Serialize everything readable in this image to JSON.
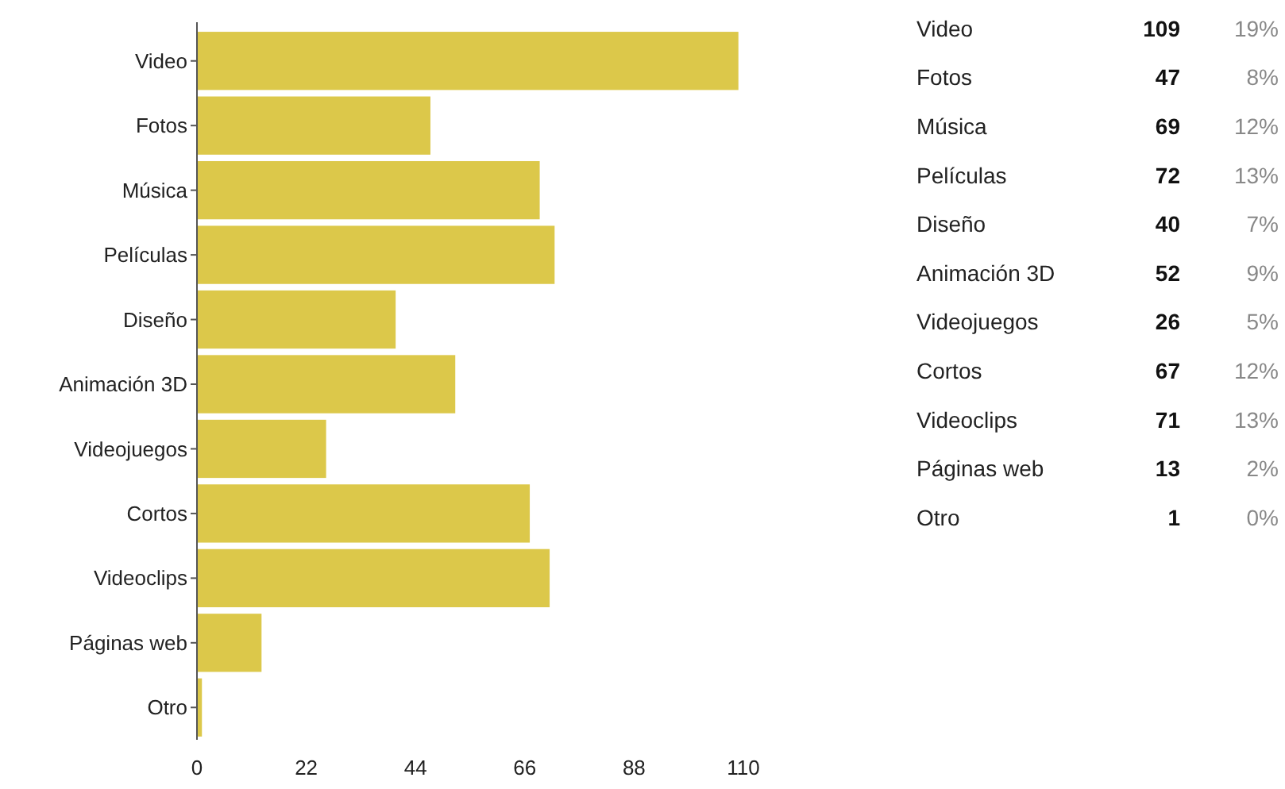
{
  "chart_data": [
    {
      "type": "bar",
      "orientation": "horizontal",
      "categories": [
        "Video",
        "Fotos",
        "Música",
        "Películas",
        "Diseño",
        "Animación 3D",
        "Videojuegos",
        "Cortos",
        "Videoclips",
        "Páginas web",
        "Otro"
      ],
      "values": [
        109,
        47,
        69,
        72,
        40,
        52,
        26,
        67,
        71,
        13,
        1
      ],
      "color": "#dcc84a",
      "xlim": [
        0,
        110
      ],
      "xticks": [
        0,
        22,
        44,
        66,
        88,
        110
      ]
    },
    {
      "type": "other",
      "categories": [
        "Video",
        "Fotos",
        "Música",
        "Películas",
        "Diseño",
        "Animación 3D",
        "Videojuegos",
        "Cortos",
        "Videoclips",
        "Páginas web",
        "Otro"
      ],
      "values": [
        109,
        47,
        69,
        72,
        40,
        52,
        26,
        67,
        71,
        13,
        1
      ],
      "data_labels": true,
      "annotations": [
        "19%",
        "8%",
        "12%",
        "13%",
        "7%",
        "9%",
        "5%",
        "12%",
        "13%",
        "2%",
        "0%"
      ]
    }
  ]
}
